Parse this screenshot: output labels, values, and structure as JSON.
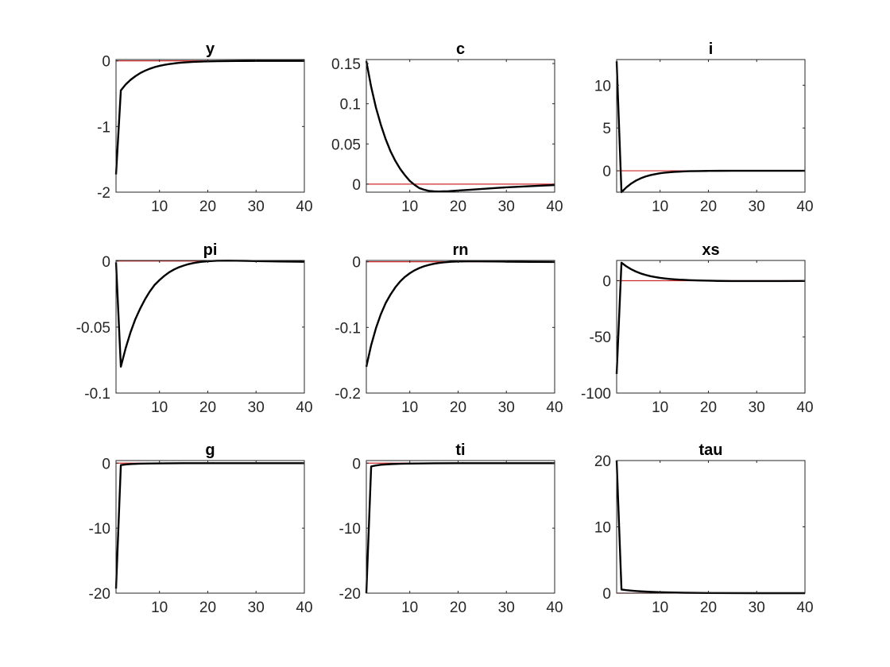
{
  "figure": {
    "colors": {
      "response": "#000000",
      "zero_line": "#cc2a2a",
      "axes": "#262626",
      "text": "#262626"
    }
  },
  "chart_data": [
    {
      "type": "line",
      "title": "y",
      "xlim": [
        1,
        40
      ],
      "ylim": [
        -2,
        0.02
      ],
      "xticks": [
        10,
        20,
        30,
        40
      ],
      "yticks": [
        0,
        -1,
        -2
      ],
      "x": [
        1,
        2,
        3,
        4,
        5,
        6,
        7,
        8,
        9,
        10,
        11,
        12,
        13,
        14,
        15,
        16,
        17,
        18,
        19,
        20,
        22,
        24,
        26,
        28,
        30,
        35,
        40
      ],
      "values": [
        -1.73,
        -0.45,
        -0.36,
        -0.29,
        -0.234,
        -0.187,
        -0.15,
        -0.12,
        -0.095,
        -0.076,
        -0.061,
        -0.049,
        -0.039,
        -0.031,
        -0.025,
        -0.02,
        -0.016,
        -0.013,
        -0.01,
        -0.008,
        -0.005,
        -0.003,
        -0.002,
        -0.001,
        0,
        0,
        0
      ]
    },
    {
      "type": "line",
      "title": "c",
      "xlim": [
        1,
        40
      ],
      "ylim": [
        -0.01,
        0.155
      ],
      "xticks": [
        10,
        20,
        30,
        40
      ],
      "yticks": [
        0.15,
        0.1,
        0.05,
        0
      ],
      "x": [
        1,
        2,
        3,
        4,
        5,
        6,
        7,
        8,
        9,
        10,
        11,
        12,
        13,
        14,
        15,
        16,
        17,
        18,
        20,
        22,
        25,
        28,
        30,
        35,
        40
      ],
      "values": [
        0.153,
        0.121,
        0.095,
        0.074,
        0.056,
        0.041,
        0.029,
        0.019,
        0.011,
        0.004,
        -0.001,
        -0.005,
        -0.007,
        -0.0085,
        -0.009,
        -0.0092,
        -0.009,
        -0.0088,
        -0.008,
        -0.0072,
        -0.006,
        -0.0048,
        -0.004,
        -0.0025,
        -0.0012
      ]
    },
    {
      "type": "line",
      "title": "i",
      "xlim": [
        1,
        40
      ],
      "ylim": [
        -2.5,
        13
      ],
      "xticks": [
        10,
        20,
        30,
        40
      ],
      "yticks": [
        10,
        5,
        0
      ],
      "x": [
        1,
        2,
        3,
        4,
        5,
        6,
        7,
        8,
        9,
        10,
        11,
        12,
        13,
        14,
        15,
        16,
        18,
        20,
        22,
        25,
        30,
        35,
        40
      ],
      "values": [
        12.8,
        -2.5,
        -1.95,
        -1.5,
        -1.15,
        -0.88,
        -0.67,
        -0.51,
        -0.39,
        -0.29,
        -0.22,
        -0.17,
        -0.13,
        -0.1,
        -0.07,
        -0.05,
        -0.03,
        -0.015,
        -0.005,
        0,
        0,
        0,
        0
      ]
    },
    {
      "type": "line",
      "title": "pi",
      "xlim": [
        1,
        40
      ],
      "ylim": [
        -0.1,
        0.0005
      ],
      "xticks": [
        10,
        20,
        30,
        40
      ],
      "yticks": [
        0,
        -0.05,
        -0.1
      ],
      "x": [
        1,
        2,
        3,
        4,
        5,
        6,
        7,
        8,
        9,
        10,
        11,
        12,
        13,
        14,
        15,
        16,
        17,
        18,
        19,
        20,
        22,
        24,
        26,
        28,
        30,
        35,
        40
      ],
      "values": [
        -0.001,
        -0.08,
        -0.066,
        -0.054,
        -0.044,
        -0.036,
        -0.029,
        -0.023,
        -0.018,
        -0.0144,
        -0.0112,
        -0.0085,
        -0.0064,
        -0.0047,
        -0.0034,
        -0.0023,
        -0.0015,
        -0.0009,
        -0.0004,
        -0.0001,
        0.0003,
        0.0004,
        0.0003,
        0.0002,
        0,
        -0.0003,
        -0.0005
      ]
    },
    {
      "type": "line",
      "title": "rn",
      "xlim": [
        1,
        40
      ],
      "ylim": [
        -0.2,
        0.002
      ],
      "xticks": [
        10,
        20,
        30,
        40
      ],
      "yticks": [
        0,
        -0.1,
        -0.2
      ],
      "x": [
        1,
        2,
        3,
        4,
        5,
        6,
        7,
        8,
        9,
        10,
        11,
        12,
        13,
        14,
        15,
        16,
        17,
        18,
        19,
        20,
        22,
        24,
        26,
        28,
        30,
        35,
        40
      ],
      "values": [
        -0.16,
        -0.127,
        -0.101,
        -0.08,
        -0.063,
        -0.05,
        -0.039,
        -0.03,
        -0.023,
        -0.0175,
        -0.013,
        -0.0095,
        -0.0068,
        -0.0047,
        -0.0031,
        -0.0019,
        -0.001,
        -0.0003,
        0.0002,
        0.0005,
        0.0008,
        0.0008,
        0.0006,
        0.0004,
        0.0002,
        -0.0002,
        -0.0004
      ]
    },
    {
      "type": "line",
      "title": "xs",
      "xlim": [
        1,
        40
      ],
      "ylim": [
        -100,
        18
      ],
      "xticks": [
        10,
        20,
        30,
        40
      ],
      "yticks": [
        0,
        -50,
        -100
      ],
      "x": [
        1,
        2,
        3,
        4,
        5,
        6,
        7,
        8,
        9,
        10,
        11,
        12,
        13,
        14,
        15,
        16,
        18,
        20,
        22,
        25,
        30,
        35,
        40
      ],
      "values": [
        -83,
        16,
        12.8,
        10.2,
        8.1,
        6.4,
        5.1,
        4,
        3.2,
        2.5,
        2,
        1.5,
        1.2,
        0.9,
        0.7,
        0.5,
        0.2,
        0,
        -0.2,
        -0.3,
        -0.35,
        -0.3,
        -0.25
      ]
    },
    {
      "type": "line",
      "title": "g",
      "xlim": [
        1,
        40
      ],
      "ylim": [
        -20,
        0.4
      ],
      "xticks": [
        10,
        20,
        30,
        40
      ],
      "yticks": [
        0,
        -10,
        -20
      ],
      "x": [
        1,
        2,
        3,
        4,
        6,
        8,
        10,
        15,
        20,
        30,
        40
      ],
      "values": [
        -19.3,
        -0.3,
        -0.2,
        -0.14,
        -0.08,
        -0.05,
        -0.03,
        -0.01,
        0,
        0,
        0
      ]
    },
    {
      "type": "line",
      "title": "ti",
      "xlim": [
        1,
        40
      ],
      "ylim": [
        -20,
        0.4
      ],
      "xticks": [
        10,
        20,
        30,
        40
      ],
      "yticks": [
        0,
        -10,
        -20
      ],
      "x": [
        1,
        2,
        3,
        4,
        6,
        8,
        10,
        15,
        20,
        30,
        40
      ],
      "values": [
        -20,
        -0.5,
        -0.35,
        -0.25,
        -0.15,
        -0.1,
        -0.06,
        -0.02,
        0,
        0,
        0
      ]
    },
    {
      "type": "line",
      "title": "tau",
      "xlim": [
        1,
        40
      ],
      "ylim": [
        0,
        20
      ],
      "xticks": [
        10,
        20,
        30,
        40
      ],
      "yticks": [
        20,
        10,
        0
      ],
      "x": [
        1,
        2,
        3,
        4,
        5,
        6,
        8,
        10,
        15,
        20,
        30,
        40
      ],
      "values": [
        20,
        0.55,
        0.45,
        0.38,
        0.32,
        0.27,
        0.2,
        0.14,
        0.06,
        0.02,
        0,
        0
      ]
    }
  ]
}
